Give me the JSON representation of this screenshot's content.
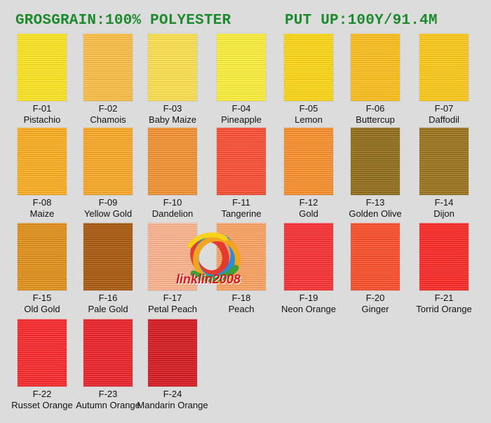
{
  "header": {
    "left": "GROSGRAIN:100% POLYESTER",
    "right": "PUT UP:100Y/91.4M"
  },
  "swatches": [
    {
      "code": "F-01",
      "name": "Pistachio",
      "color": "#ffe71a"
    },
    {
      "code": "F-02",
      "name": "Chamois",
      "color": "#ffbf3f"
    },
    {
      "code": "F-03",
      "name": "Baby Maize",
      "color": "#ffe24a"
    },
    {
      "code": "F-04",
      "name": "Pineapple",
      "color": "#fff133"
    },
    {
      "code": "F-05",
      "name": "Lemon",
      "color": "#ffd80c"
    },
    {
      "code": "F-06",
      "name": "Buttercup",
      "color": "#ffbf15"
    },
    {
      "code": "F-07",
      "name": "Daffodil",
      "color": "#ffca12"
    },
    {
      "code": "F-08",
      "name": "Maize",
      "color": "#ffad18"
    },
    {
      "code": "F-09",
      "name": "Yellow Gold",
      "color": "#ffa71f"
    },
    {
      "code": "F-10",
      "name": "Dandelion",
      "color": "#f5902a"
    },
    {
      "code": "F-11",
      "name": "Tangerine",
      "color": "#ff4a2c"
    },
    {
      "code": "F-12",
      "name": "Gold",
      "color": "#ff8d26"
    },
    {
      "code": "F-13",
      "name": "Golden Olive",
      "color": "#8f6a12"
    },
    {
      "code": "F-14",
      "name": "Dijon",
      "color": "#9a7016"
    },
    {
      "code": "F-15",
      "name": "Old Gold",
      "color": "#e38e12"
    },
    {
      "code": "F-16",
      "name": "Pale Gold",
      "color": "#a95506"
    },
    {
      "code": "F-17",
      "name": "Petal Peach",
      "color": "#ffb38c"
    },
    {
      "code": "F-18",
      "name": "Peach",
      "color": "#ffa25e"
    },
    {
      "code": "F-19",
      "name": "Neon Orange",
      "color": "#ff2a2e"
    },
    {
      "code": "F-20",
      "name": "Ginger",
      "color": "#ff4a25"
    },
    {
      "code": "F-21",
      "name": "Torrid Orange",
      "color": "#ff2320"
    },
    {
      "code": "F-22",
      "name": "Russet Orange",
      "color": "#ff2225"
    },
    {
      "code": "F-23",
      "name": "Autumn Orange",
      "color": "#ee1c24"
    },
    {
      "code": "F-24",
      "name": "Mandarin Orange",
      "color": "#d8141b"
    }
  ],
  "watermark": {
    "text": "linklin2008"
  }
}
